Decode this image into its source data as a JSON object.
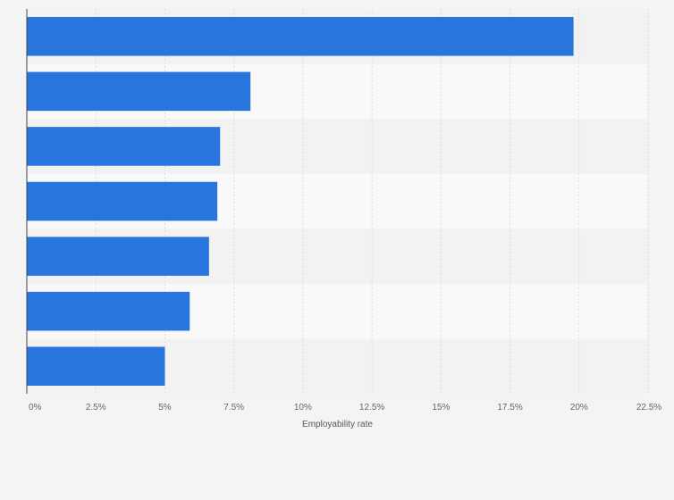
{
  "chart_data": {
    "type": "bar",
    "orientation": "horizontal",
    "categories": [
      "",
      "",
      "",
      "",
      "",
      "",
      ""
    ],
    "values": [
      19.8,
      8.1,
      7.0,
      6.9,
      6.6,
      5.9,
      5.0
    ],
    "xlabel": "Employability rate",
    "ylabel": "",
    "xlim": [
      0,
      22.5
    ],
    "ticks": [
      0,
      2.5,
      5,
      7.5,
      10,
      12.5,
      15,
      17.5,
      20,
      22.5
    ],
    "tick_labels": [
      "0%",
      "2.5%",
      "5%",
      "7.5%",
      "10%",
      "12.5%",
      "15%",
      "17.5%",
      "20%",
      "22.5%"
    ],
    "grid": true,
    "legend": "none"
  },
  "colors": {
    "bar": "#2876dd",
    "background": "#f4f4f4",
    "band_light": "#f9f9f9",
    "band_dark": "#f2f2f2",
    "grid": "#dddddd",
    "axis": "#444444"
  }
}
